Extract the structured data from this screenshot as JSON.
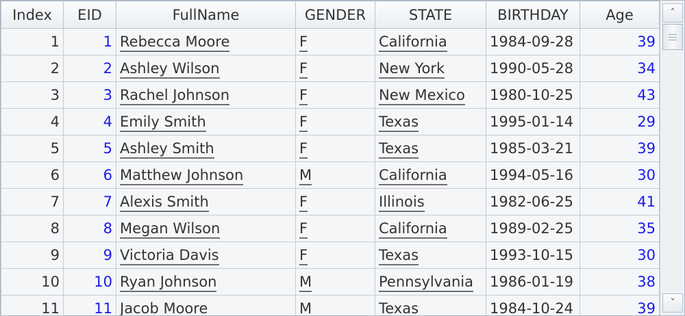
{
  "table": {
    "columns": [
      "Index",
      "EID",
      "FullName",
      "GENDER",
      "STATE",
      "BIRTHDAY",
      "Age"
    ],
    "rows": [
      [
        "1",
        "1",
        "Rebecca Moore",
        "F",
        "California",
        "1984-09-28",
        "39"
      ],
      [
        "2",
        "2",
        "Ashley Wilson",
        "F",
        "New York",
        "1990-05-28",
        "34"
      ],
      [
        "3",
        "3",
        "Rachel Johnson",
        "F",
        "New Mexico",
        "1980-10-25",
        "43"
      ],
      [
        "4",
        "4",
        "Emily Smith",
        "F",
        "Texas",
        "1995-01-14",
        "29"
      ],
      [
        "5",
        "5",
        "Ashley Smith",
        "F",
        "Texas",
        "1985-03-21",
        "39"
      ],
      [
        "6",
        "6",
        "Matthew Johnson",
        "M",
        "California",
        "1994-05-16",
        "30"
      ],
      [
        "7",
        "7",
        "Alexis Smith",
        "F",
        "Illinois",
        "1982-06-25",
        "41"
      ],
      [
        "8",
        "8",
        "Megan Wilson",
        "F",
        "California",
        "1989-02-25",
        "35"
      ],
      [
        "9",
        "9",
        "Victoria Davis",
        "F",
        "Texas",
        "1993-10-15",
        "30"
      ],
      [
        "10",
        "10",
        "Ryan Johnson",
        "M",
        "Pennsylvania",
        "1986-01-19",
        "38"
      ],
      [
        "11",
        "11",
        "Jacob Moore",
        "M",
        "Texas",
        "1984-10-24",
        "39"
      ]
    ]
  },
  "scrollbar": {
    "up_icon": "chevron-up-icon",
    "down_icon": "chevron-down-icon",
    "up_glyph": "˄",
    "down_glyph": "˅"
  },
  "colors": {
    "number_link": "#1a1ae6",
    "header_bg": "#edf1f5",
    "row_bg": "#f4f6f8",
    "grid_line": "#c4ccd4"
  }
}
